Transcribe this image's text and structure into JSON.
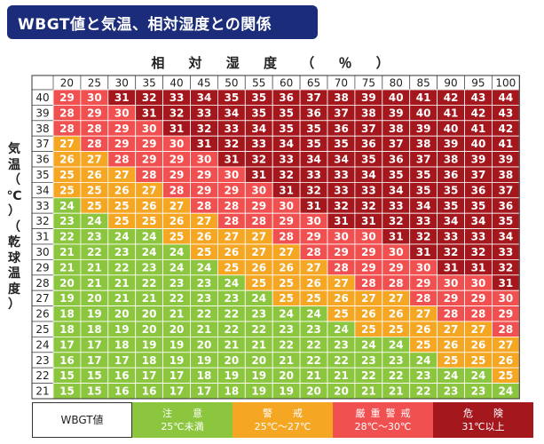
{
  "title": "WBGT値と気温、相対湿度との関係",
  "xlabel": "相 対 湿 度 （ ％ ）",
  "ylabel_chars": [
    "気",
    "温",
    "（",
    "℃",
    "）",
    "（",
    "乾",
    "球",
    "温",
    "度",
    "）"
  ],
  "legend": {
    "wbgt_label": "WBGT値",
    "items": [
      {
        "line1": "注　意",
        "line2": "25℃未満",
        "color": "#8cc63f"
      },
      {
        "line1": "警　戒",
        "line2": "25℃～27℃",
        "color": "#f5a623"
      },
      {
        "line1": "厳重警戒",
        "line2": "28℃～30℃",
        "color": "#f0504f"
      },
      {
        "line1": "危　険",
        "line2": "31℃以上",
        "color": "#a4171d"
      }
    ]
  },
  "chart_data": {
    "type": "heatmap",
    "title": "WBGT値と気温、相対湿度との関係",
    "xlabel": "相対湿度（％）",
    "ylabel": "気温（℃）（乾球温度）",
    "x": [
      20,
      25,
      30,
      35,
      40,
      45,
      50,
      55,
      60,
      65,
      70,
      75,
      80,
      85,
      90,
      95,
      100
    ],
    "y": [
      40,
      39,
      38,
      37,
      36,
      35,
      34,
      33,
      32,
      31,
      30,
      29,
      28,
      27,
      26,
      25,
      24,
      23,
      22,
      21
    ],
    "values": [
      [
        29,
        30,
        31,
        32,
        33,
        34,
        35,
        35,
        36,
        37,
        38,
        39,
        40,
        41,
        42,
        43,
        44
      ],
      [
        28,
        29,
        30,
        31,
        32,
        33,
        34,
        35,
        35,
        36,
        37,
        38,
        39,
        40,
        41,
        42,
        43
      ],
      [
        28,
        28,
        29,
        30,
        31,
        32,
        33,
        34,
        35,
        35,
        36,
        37,
        38,
        39,
        40,
        41,
        42
      ],
      [
        27,
        28,
        29,
        29,
        30,
        31,
        32,
        33,
        34,
        35,
        35,
        36,
        37,
        38,
        39,
        40,
        41
      ],
      [
        26,
        27,
        28,
        29,
        29,
        30,
        31,
        32,
        33,
        34,
        34,
        35,
        36,
        37,
        38,
        39,
        39
      ],
      [
        25,
        26,
        27,
        28,
        29,
        29,
        30,
        31,
        32,
        33,
        33,
        34,
        35,
        35,
        36,
        37,
        38
      ],
      [
        25,
        25,
        26,
        27,
        28,
        29,
        29,
        30,
        31,
        32,
        33,
        33,
        34,
        35,
        35,
        36,
        37
      ],
      [
        24,
        25,
        25,
        26,
        27,
        28,
        28,
        29,
        30,
        31,
        32,
        32,
        33,
        34,
        35,
        35,
        36
      ],
      [
        23,
        24,
        25,
        25,
        26,
        27,
        28,
        28,
        29,
        30,
        31,
        31,
        32,
        33,
        34,
        34,
        35
      ],
      [
        22,
        23,
        24,
        24,
        25,
        26,
        27,
        27,
        28,
        29,
        30,
        30,
        31,
        32,
        33,
        33,
        34
      ],
      [
        21,
        22,
        23,
        24,
        24,
        25,
        26,
        27,
        27,
        28,
        29,
        29,
        30,
        31,
        32,
        32,
        33
      ],
      [
        21,
        21,
        22,
        23,
        24,
        24,
        25,
        26,
        26,
        27,
        28,
        29,
        29,
        30,
        31,
        31,
        32
      ],
      [
        20,
        21,
        21,
        22,
        23,
        23,
        24,
        25,
        25,
        26,
        27,
        28,
        28,
        29,
        30,
        30,
        31
      ],
      [
        19,
        20,
        21,
        21,
        22,
        23,
        23,
        24,
        25,
        25,
        26,
        27,
        27,
        28,
        29,
        29,
        30
      ],
      [
        18,
        19,
        20,
        20,
        21,
        22,
        22,
        23,
        24,
        24,
        25,
        26,
        26,
        27,
        28,
        28,
        29
      ],
      [
        18,
        18,
        19,
        20,
        20,
        21,
        22,
        22,
        23,
        23,
        24,
        25,
        25,
        26,
        27,
        27,
        28
      ],
      [
        17,
        17,
        18,
        19,
        19,
        20,
        21,
        21,
        22,
        22,
        23,
        24,
        24,
        25,
        26,
        26,
        27
      ],
      [
        16,
        17,
        17,
        18,
        19,
        19,
        20,
        20,
        21,
        22,
        22,
        23,
        23,
        24,
        25,
        25,
        26
      ],
      [
        15,
        15,
        16,
        17,
        17,
        18,
        19,
        19,
        20,
        21,
        21,
        22,
        22,
        23,
        24,
        24,
        25
      ],
      [
        15,
        15,
        16,
        16,
        17,
        17,
        18,
        19,
        19,
        20,
        20,
        21,
        21,
        22,
        23,
        23,
        24
      ]
    ],
    "color_bands": [
      {
        "max": 24,
        "color": "#8cc63f"
      },
      {
        "max": 27,
        "color": "#f5a623"
      },
      {
        "max": 30,
        "color": "#f0504f"
      },
      {
        "max": 99,
        "color": "#a4171d"
      }
    ]
  }
}
